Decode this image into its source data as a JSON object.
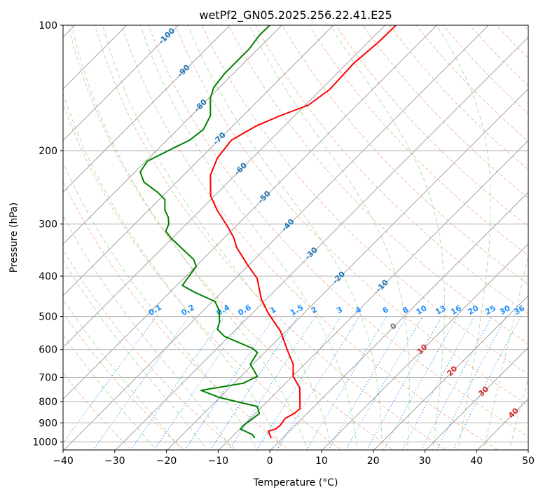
{
  "chart_data": {
    "type": "line",
    "subtype": "skew-T log-P diagram",
    "title": "wetPf2_GN05.2025.256.22.41.E25",
    "xlabel": "Temperature (°C)",
    "ylabel": "Pressure (hPa)",
    "xlim": [
      -40,
      50
    ],
    "ylim": [
      1050,
      100
    ],
    "yscale": "log",
    "grid": true,
    "x_ticks": [
      "−40",
      "−30",
      "−20",
      "−10",
      "0",
      "10",
      "20",
      "30",
      "40",
      "50"
    ],
    "x_tick_values": [
      -40,
      -30,
      -20,
      -10,
      0,
      10,
      20,
      30,
      40,
      50
    ],
    "y_ticks": [
      "100",
      "200",
      "300",
      "400",
      "500",
      "600",
      "700",
      "800",
      "900",
      "1000"
    ],
    "y_tick_values": [
      100,
      200,
      300,
      400,
      500,
      600,
      700,
      800,
      900,
      1000
    ],
    "isotherm_labels": [
      {
        "text": "-100",
        "value": -100
      },
      {
        "text": "-90",
        "value": -90
      },
      {
        "text": "-80",
        "value": -80
      },
      {
        "text": "-70",
        "value": -70
      },
      {
        "text": "-60",
        "value": -60
      },
      {
        "text": "-50",
        "value": -50
      },
      {
        "text": "-40",
        "value": -40
      },
      {
        "text": "-30",
        "value": -30
      },
      {
        "text": "-20",
        "value": -20
      },
      {
        "text": "-10",
        "value": -10
      },
      {
        "text": "0",
        "value": 0
      },
      {
        "text": "10",
        "value": 10
      },
      {
        "text": "20",
        "value": 20
      },
      {
        "text": "30",
        "value": 30
      },
      {
        "text": "40",
        "value": 40
      }
    ],
    "mixing_ratio_labels": [
      "0.1",
      "0.2",
      "0.4",
      "0.6",
      "1",
      "1.5",
      "2",
      "3",
      "4",
      "6",
      "8",
      "10",
      "13",
      "16",
      "20",
      "25",
      "30",
      "36"
    ],
    "mixing_ratio_values": [
      0.1,
      0.2,
      0.4,
      0.6,
      1,
      1.5,
      2,
      3,
      4,
      6,
      8,
      10,
      13,
      16,
      20,
      25,
      30,
      36
    ],
    "series": [
      {
        "name": "temperature",
        "color": "#ff0000",
        "points": [
          [
            979,
            -2.2
          ],
          [
            942,
            -4.1
          ],
          [
            931,
            -3.1
          ],
          [
            913,
            -2.9
          ],
          [
            878,
            -3.3
          ],
          [
            855,
            -2.5
          ],
          [
            832,
            -2.3
          ],
          [
            741,
            -6.4
          ],
          [
            696,
            -9.9
          ],
          [
            651,
            -12.2
          ],
          [
            603,
            -16.0
          ],
          [
            543,
            -21.0
          ],
          [
            491,
            -26.9
          ],
          [
            455,
            -30.9
          ],
          [
            405,
            -35.8
          ],
          [
            375,
            -40.4
          ],
          [
            341,
            -45.8
          ],
          [
            324,
            -48.1
          ],
          [
            306,
            -51.2
          ],
          [
            278,
            -56.7
          ],
          [
            257,
            -60.7
          ],
          [
            229,
            -64.8
          ],
          [
            208,
            -66.8
          ],
          [
            188.7,
            -67.5
          ],
          [
            174.7,
            -65.5
          ],
          [
            164.8,
            -62.8
          ],
          [
            155.5,
            -59.4
          ],
          [
            142.8,
            -58.3
          ],
          [
            123.3,
            -58.7
          ],
          [
            109.7,
            -58.0
          ],
          [
            100,
            -57.9
          ]
        ]
      },
      {
        "name": "dewpoint",
        "color": "#008000",
        "points": [
          [
            979,
            -5.4
          ],
          [
            960,
            -6.5
          ],
          [
            931,
            -9.9
          ],
          [
            913,
            -10.0
          ],
          [
            855,
            -9.2
          ],
          [
            822,
            -11.0
          ],
          [
            782,
            -20.1
          ],
          [
            752,
            -25.0
          ],
          [
            723,
            -18.2
          ],
          [
            696,
            -16.8
          ],
          [
            651,
            -20.5
          ],
          [
            610,
            -21.4
          ],
          [
            596,
            -23.2
          ],
          [
            558,
            -30.9
          ],
          [
            537,
            -33.6
          ],
          [
            516,
            -34.6
          ],
          [
            484,
            -36.9
          ],
          [
            460,
            -39.5
          ],
          [
            437,
            -45.3
          ],
          [
            421,
            -48.9
          ],
          [
            379,
            -49.9
          ],
          [
            365,
            -51.7
          ],
          [
            324,
            -60.3
          ],
          [
            312,
            -62.6
          ],
          [
            300,
            -63.4
          ],
          [
            289,
            -64.8
          ],
          [
            278,
            -66.8
          ],
          [
            262,
            -68.9
          ],
          [
            252,
            -71.6
          ],
          [
            238,
            -76.3
          ],
          [
            225,
            -79.0
          ],
          [
            212,
            -79.7
          ],
          [
            200,
            -77.7
          ],
          [
            188.7,
            -75.6
          ],
          [
            178,
            -75.0
          ],
          [
            164.8,
            -76.3
          ],
          [
            149.6,
            -79.7
          ],
          [
            141.2,
            -81.1
          ],
          [
            130.6,
            -81.7
          ],
          [
            120.9,
            -81.7
          ],
          [
            114,
            -81.7
          ],
          [
            105.6,
            -82.4
          ],
          [
            100,
            -82.3
          ]
        ]
      }
    ]
  }
}
